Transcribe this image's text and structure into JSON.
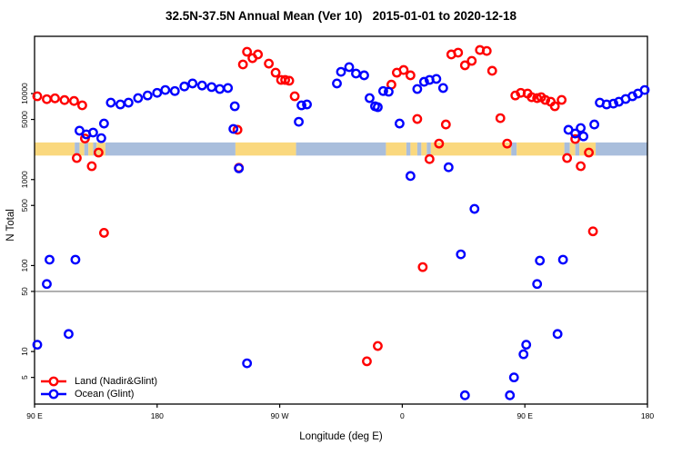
{
  "chart_data": {
    "type": "scatter",
    "title": "32.5N-37.5N Annual Mean (Ver 10)   2015-01-01 to 2020-12-18",
    "xlabel": "Longitude (deg E)",
    "ylabel": "N Total",
    "x_axis": {
      "range": [
        90,
        540
      ],
      "ticks": [
        {
          "value": 90,
          "label": "90 E"
        },
        {
          "value": 180,
          "label": "180"
        },
        {
          "value": 270,
          "label": "90 W"
        },
        {
          "value": 360,
          "label": "0"
        },
        {
          "value": 450,
          "label": "90 E"
        },
        {
          "value": 540,
          "label": "180"
        }
      ]
    },
    "y_axis": {
      "scale": "log10",
      "range": [
        2.45,
        46300
      ],
      "ticks": [
        {
          "value": 5,
          "label": "5"
        },
        {
          "value": 10,
          "label": "10"
        },
        {
          "value": 50,
          "label": "50"
        },
        {
          "value": 100,
          "label": "100"
        },
        {
          "value": 500,
          "label": "500"
        },
        {
          "value": 1000,
          "label": "1000"
        },
        {
          "value": 5000,
          "label": "5000"
        },
        {
          "value": 10000,
          "label": "10000"
        }
      ]
    },
    "grid": false,
    "reference_line": {
      "value": 50,
      "color": "#8c8c8c"
    },
    "land_ocean_band": {
      "value_span": [
        1900,
        2700
      ],
      "land_color": "#fad87e",
      "ocean_color": "#a9bedc",
      "segments": [
        {
          "from": 90,
          "to": 119.5,
          "type": "land"
        },
        {
          "from": 119.5,
          "to": 123,
          "type": "ocean"
        },
        {
          "from": 123,
          "to": 126.5,
          "type": "land"
        },
        {
          "from": 126.5,
          "to": 129.5,
          "type": "ocean"
        },
        {
          "from": 129.5,
          "to": 133,
          "type": "land"
        },
        {
          "from": 133,
          "to": 135.5,
          "type": "ocean"
        },
        {
          "from": 135.5,
          "to": 142,
          "type": "land"
        },
        {
          "from": 142,
          "to": 237.5,
          "type": "ocean"
        },
        {
          "from": 237.5,
          "to": 282,
          "type": "land"
        },
        {
          "from": 282,
          "to": 348,
          "type": "ocean"
        },
        {
          "from": 348,
          "to": 363,
          "type": "land"
        },
        {
          "from": 363,
          "to": 366,
          "type": "ocean"
        },
        {
          "from": 366,
          "to": 371,
          "type": "land"
        },
        {
          "from": 371,
          "to": 374,
          "type": "ocean"
        },
        {
          "from": 374,
          "to": 378,
          "type": "land"
        },
        {
          "from": 378,
          "to": 381,
          "type": "ocean"
        },
        {
          "from": 381,
          "to": 440,
          "type": "land"
        },
        {
          "from": 440,
          "to": 444,
          "type": "ocean"
        },
        {
          "from": 444,
          "to": 479,
          "type": "land"
        },
        {
          "from": 479,
          "to": 483,
          "type": "ocean"
        },
        {
          "from": 483,
          "to": 487,
          "type": "land"
        },
        {
          "from": 487,
          "to": 490,
          "type": "ocean"
        },
        {
          "from": 490,
          "to": 502,
          "type": "land"
        },
        {
          "from": 502,
          "to": 540,
          "type": "ocean"
        }
      ]
    },
    "legend": {
      "position": "bottom-left",
      "items": [
        {
          "label": "Land (Nadir&Glint)",
          "color": "#ff0000"
        },
        {
          "label": "Ocean (Glint)",
          "color": "#0000ff"
        }
      ]
    },
    "series": [
      {
        "name": "Land (Nadir&Glint)",
        "color": "#ff0000",
        "points": [
          [
            92,
            9300
          ],
          [
            99,
            8600
          ],
          [
            105,
            8800
          ],
          [
            112,
            8400
          ],
          [
            119,
            8200
          ],
          [
            121,
            1780
          ],
          [
            125,
            7300
          ],
          [
            127,
            3000
          ],
          [
            132,
            1430
          ],
          [
            137,
            2060
          ],
          [
            141,
            240
          ],
          [
            239,
            3790
          ],
          [
            240,
            1370
          ],
          [
            243,
            21800
          ],
          [
            246,
            30600
          ],
          [
            250,
            25800
          ],
          [
            254,
            28500
          ],
          [
            262,
            22300
          ],
          [
            267,
            17500
          ],
          [
            271,
            14400
          ],
          [
            274,
            14400
          ],
          [
            277,
            14100
          ],
          [
            281,
            9300
          ],
          [
            334,
            7.7
          ],
          [
            342,
            11.6
          ],
          [
            352,
            12700
          ],
          [
            356,
            17500
          ],
          [
            361,
            18800
          ],
          [
            366,
            16300
          ],
          [
            371,
            5060
          ],
          [
            375,
            96
          ],
          [
            380,
            1730
          ],
          [
            387,
            2620
          ],
          [
            392,
            4370
          ],
          [
            396,
            28500
          ],
          [
            401,
            29900
          ],
          [
            406,
            21300
          ],
          [
            411,
            24000
          ],
          [
            417,
            32100
          ],
          [
            422,
            31300
          ],
          [
            426,
            18400
          ],
          [
            432,
            5180
          ],
          [
            437,
            2620
          ],
          [
            443,
            9500
          ],
          [
            447,
            10200
          ],
          [
            452,
            10000
          ],
          [
            455,
            9070
          ],
          [
            459,
            8850
          ],
          [
            462,
            9070
          ],
          [
            465,
            8440
          ],
          [
            469,
            8040
          ],
          [
            472,
            7120
          ],
          [
            477,
            8440
          ],
          [
            481,
            1780
          ],
          [
            487,
            2960
          ],
          [
            491,
            1430
          ],
          [
            497,
            2060
          ],
          [
            500,
            250
          ]
        ]
      },
      {
        "name": "Ocean (Glint)",
        "color": "#0000ff",
        "points": [
          [
            92,
            12
          ],
          [
            99,
            61
          ],
          [
            101,
            117
          ],
          [
            115,
            16
          ],
          [
            120,
            117
          ],
          [
            123,
            3700
          ],
          [
            128,
            3350
          ],
          [
            133,
            3520
          ],
          [
            139,
            3030
          ],
          [
            141,
            4480
          ],
          [
            146,
            7840
          ],
          [
            153,
            7470
          ],
          [
            159,
            7840
          ],
          [
            166,
            8850
          ],
          [
            173,
            9500
          ],
          [
            180,
            10200
          ],
          [
            186,
            11000
          ],
          [
            193,
            10700
          ],
          [
            200,
            12100
          ],
          [
            206,
            13100
          ],
          [
            213,
            12400
          ],
          [
            220,
            11900
          ],
          [
            226,
            11300
          ],
          [
            232,
            11600
          ],
          [
            236,
            3880
          ],
          [
            237,
            7120
          ],
          [
            240,
            1350
          ],
          [
            246,
            7.3
          ],
          [
            284,
            4700
          ],
          [
            286,
            7290
          ],
          [
            290,
            7470
          ],
          [
            312,
            13100
          ],
          [
            315,
            17900
          ],
          [
            321,
            20300
          ],
          [
            326,
            17100
          ],
          [
            332,
            16300
          ],
          [
            336,
            8850
          ],
          [
            340,
            7120
          ],
          [
            342,
            6950
          ],
          [
            346,
            10700
          ],
          [
            350,
            10500
          ],
          [
            358,
            4480
          ],
          [
            366,
            1100
          ],
          [
            371,
            11300
          ],
          [
            376,
            13700
          ],
          [
            380,
            14400
          ],
          [
            385,
            14800
          ],
          [
            390,
            11600
          ],
          [
            394,
            1390
          ],
          [
            403,
            135
          ],
          [
            406,
            3.1
          ],
          [
            413,
            456
          ],
          [
            439,
            3.1
          ],
          [
            442,
            5
          ],
          [
            449,
            9.3
          ],
          [
            451,
            12
          ],
          [
            459,
            61
          ],
          [
            461,
            114
          ],
          [
            474,
            16
          ],
          [
            478,
            117
          ],
          [
            482,
            3790
          ],
          [
            487,
            3430
          ],
          [
            491,
            3970
          ],
          [
            493,
            3180
          ],
          [
            501,
            4370
          ],
          [
            505,
            7840
          ],
          [
            510,
            7470
          ],
          [
            515,
            7640
          ],
          [
            519,
            8040
          ],
          [
            524,
            8650
          ],
          [
            529,
            9300
          ],
          [
            533,
            10000
          ],
          [
            538,
            11000
          ]
        ]
      }
    ]
  }
}
